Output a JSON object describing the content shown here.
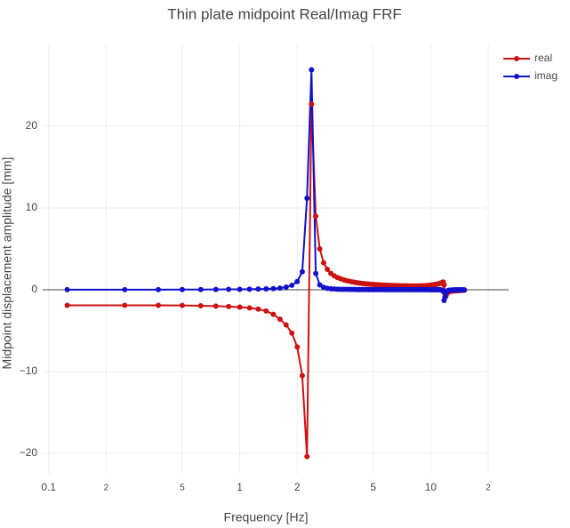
{
  "chart_data": {
    "type": "line",
    "title": "Thin plate midpoint Real/Imag FRF",
    "x_label": "Frequency [Hz]",
    "y_label": "Midpoint  displacement amplitude [mm]",
    "x_scale": "log",
    "grid": true,
    "legend_position": "top-right",
    "xlim": [
      0.093,
      20.2
    ],
    "ylim": [
      -22.5,
      30
    ],
    "xticks": [
      0.1,
      {
        "value": 0.2,
        "label": "2"
      },
      {
        "value": 0.5,
        "label": "5"
      },
      1,
      2,
      5,
      10,
      {
        "value": 20,
        "label": "2"
      }
    ],
    "yticks": [
      {
        "value": -20,
        "label": "−20"
      },
      {
        "value": -10,
        "label": "−10"
      },
      0,
      10,
      20
    ],
    "x": [
      0.125,
      0.25,
      0.375,
      0.5,
      0.625,
      0.75,
      0.875,
      1,
      1.125,
      1.25,
      1.375,
      1.5,
      1.625,
      1.75,
      1.875,
      2,
      2.125,
      2.25,
      2.375,
      2.5,
      2.625,
      2.75,
      2.875,
      3,
      3.125,
      3.25,
      3.375,
      3.5,
      3.625,
      3.75,
      3.875,
      4,
      4.125,
      4.25,
      4.375,
      4.5,
      4.625,
      4.75,
      4.875,
      5,
      5.125,
      5.25,
      5.375,
      5.5,
      5.625,
      5.75,
      5.875,
      6,
      6.125,
      6.25,
      6.375,
      6.5,
      6.625,
      6.75,
      6.875,
      7,
      7.125,
      7.25,
      7.375,
      7.5,
      7.625,
      7.75,
      7.875,
      8,
      8.125,
      8.25,
      8.375,
      8.5,
      8.625,
      8.75,
      8.875,
      9,
      9.125,
      9.25,
      9.375,
      9.5,
      9.625,
      9.75,
      9.875,
      10,
      10.125,
      10.25,
      10.375,
      10.5,
      10.625,
      10.75,
      10.875,
      11,
      11.125,
      11.25,
      11.375,
      11.5,
      11.625,
      11.75,
      11.875,
      12,
      12.125,
      12.25,
      12.375,
      12.5,
      12.625,
      12.75,
      12.875,
      13,
      13.125,
      13.25,
      13.375,
      13.5,
      13.625,
      13.75,
      13.875,
      14,
      14.125,
      14.25,
      14.375,
      14.5,
      14.625,
      14.75,
      14.875,
      15
    ],
    "series": [
      {
        "name": "real",
        "color": "#cc1111",
        "values": [
          -1.9,
          -1.9,
          -1.9,
          -1.92,
          -1.95,
          -2.0,
          -2.05,
          -2.12,
          -2.22,
          -2.36,
          -2.6,
          -3.0,
          -3.6,
          -4.3,
          -5.3,
          -7.0,
          -10.5,
          -20.4,
          22.7,
          9.0,
          5.0,
          3.3,
          2.5,
          2.0,
          1.7,
          1.5,
          1.35,
          1.22,
          1.12,
          1.04,
          0.97,
          0.91,
          0.86,
          0.82,
          0.78,
          0.75,
          0.72,
          0.69,
          0.67,
          0.65,
          0.63,
          0.61,
          0.6,
          0.58,
          0.57,
          0.56,
          0.55,
          0.54,
          0.53,
          0.52,
          0.51,
          0.5,
          0.5,
          0.49,
          0.49,
          0.48,
          0.48,
          0.47,
          0.47,
          0.47,
          0.46,
          0.46,
          0.46,
          0.46,
          0.46,
          0.46,
          0.46,
          0.46,
          0.46,
          0.47,
          0.47,
          0.47,
          0.48,
          0.48,
          0.49,
          0.5,
          0.51,
          0.52,
          0.54,
          0.56,
          0.58,
          0.6,
          0.62,
          0.64,
          0.66,
          0.68,
          0.7,
          0.73,
          0.76,
          0.8,
          0.85,
          0.9,
          0.95,
          0.6,
          -0.5,
          -0.8,
          -0.5,
          -0.35,
          -0.28,
          -0.23,
          -0.2,
          -0.18,
          -0.16,
          -0.15,
          -0.14,
          -0.13,
          -0.12,
          -0.11,
          -0.1,
          -0.1,
          -0.09,
          -0.09,
          -0.08,
          -0.08,
          -0.07,
          -0.07,
          -0.07,
          -0.06,
          -0.06,
          -0.05
        ]
      },
      {
        "name": "imag",
        "color": "#1111cc",
        "values": [
          0.01,
          0.02,
          0.02,
          0.03,
          0.03,
          0.04,
          0.05,
          0.06,
          0.07,
          0.09,
          0.11,
          0.15,
          0.21,
          0.32,
          0.55,
          1.0,
          2.2,
          11.2,
          26.9,
          2.0,
          0.6,
          0.3,
          0.18,
          0.12,
          0.09,
          0.07,
          0.06,
          0.05,
          0.05,
          0.04,
          0.04,
          0.04,
          0.03,
          0.03,
          0.03,
          0.03,
          0.03,
          0.02,
          0.02,
          0.02,
          0.02,
          0.02,
          0.02,
          0.02,
          0.02,
          0.02,
          0.02,
          0.02,
          0.02,
          0.02,
          0.02,
          0.02,
          0.02,
          0.02,
          0.02,
          0.02,
          0.02,
          0.02,
          0.02,
          0.02,
          0.02,
          0.02,
          0.02,
          0.02,
          0.02,
          0.02,
          0.02,
          0.02,
          0.02,
          0.02,
          0.02,
          0.02,
          0.02,
          0.02,
          0.02,
          0.02,
          0.02,
          0.02,
          0.02,
          0.01,
          0.01,
          0.01,
          0.01,
          0.01,
          0.01,
          0.01,
          0.01,
          0.01,
          0,
          0,
          -0.02,
          -0.06,
          -0.2,
          -1.3,
          -0.9,
          -0.4,
          -0.2,
          -0.12,
          -0.08,
          -0.06,
          -0.05,
          -0.04,
          -0.04,
          -0.03,
          -0.03,
          -0.03,
          -0.02,
          -0.02,
          -0.02,
          -0.02,
          -0.02,
          -0.02,
          -0.01,
          -0.01,
          -0.01,
          -0.01,
          -0.01,
          -0.01,
          -0.01,
          -0.01
        ]
      }
    ]
  }
}
